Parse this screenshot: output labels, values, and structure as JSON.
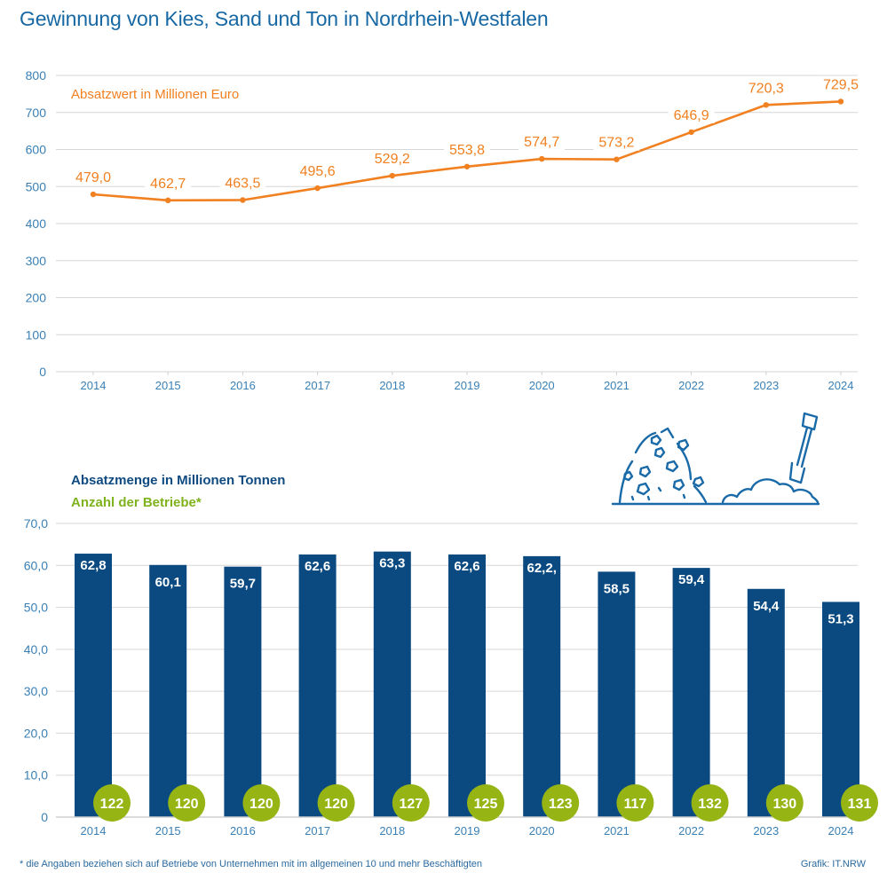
{
  "title": "Gewinnung von Kies, Sand und Ton in Nordrhein-Westfalen",
  "footnote": "*  die Angaben beziehen sich auf Betriebe von Unternehmen mit im allgemeinen 10 und mehr Beschäftigten",
  "credit": "Grafik: IT.NRW",
  "colors": {
    "title": "#1768a3",
    "line": "#f08020",
    "bar": "#0a4a80",
    "circle": "#96b414",
    "axis_text": "#3a80b5"
  },
  "illustration": "gravel-pile-and-shovel-icon",
  "chart_data": [
    {
      "type": "line",
      "title": "",
      "legend_label": "Absatzwert in Millionen Euro",
      "legend_position": "top-left",
      "categories": [
        "2014",
        "2015",
        "2016",
        "2017",
        "2018",
        "2019",
        "2020",
        "2021",
        "2022",
        "2023",
        "2024"
      ],
      "values": [
        479.0,
        462.7,
        463.5,
        495.6,
        529.2,
        553.8,
        574.7,
        573.2,
        646.9,
        720.3,
        729.5
      ],
      "value_labels": [
        "479,0",
        "462,7",
        "463,5",
        "495,6",
        "529,2",
        "553,8",
        "574,7",
        "573,2",
        "646,9",
        "720,3",
        "729,5"
      ],
      "yticks": [
        0,
        100,
        200,
        300,
        400,
        500,
        600,
        700,
        800
      ],
      "ytick_labels": [
        "0",
        "100",
        "200",
        "300",
        "400",
        "500",
        "600",
        "700",
        "800"
      ],
      "ylim": [
        0,
        800
      ],
      "xlabel": "",
      "ylabel": "",
      "grid": true
    },
    {
      "type": "bar",
      "title": "",
      "legend_label": "Absatzmenge in Millionen Tonnen",
      "legend_position": "top-left",
      "categories": [
        "2014",
        "2015",
        "2016",
        "2017",
        "2018",
        "2019",
        "2020",
        "2021",
        "2022",
        "2023",
        "2024"
      ],
      "values": [
        62.8,
        60.1,
        59.7,
        62.6,
        63.3,
        62.6,
        62.2,
        58.5,
        59.4,
        54.4,
        51.3
      ],
      "value_labels": [
        "62,8",
        "60,1",
        "59,7",
        "62,6",
        "63,3",
        "62,6",
        "62,2,",
        "58,5",
        "59,4",
        "54,4",
        "51,3"
      ],
      "secondary_series": {
        "name": "Anzahl der Betriebe*",
        "values": [
          122,
          120,
          120,
          120,
          127,
          125,
          123,
          117,
          132,
          130,
          131
        ]
      },
      "yticks": [
        0,
        10,
        20,
        30,
        40,
        50,
        60,
        70
      ],
      "ytick_labels": [
        "0",
        "10,0",
        "20,0",
        "30,0",
        "40,0",
        "50,0",
        "60,0",
        "70,0"
      ],
      "ylim": [
        0,
        70
      ],
      "xlabel": "",
      "ylabel": "",
      "grid": true
    }
  ]
}
